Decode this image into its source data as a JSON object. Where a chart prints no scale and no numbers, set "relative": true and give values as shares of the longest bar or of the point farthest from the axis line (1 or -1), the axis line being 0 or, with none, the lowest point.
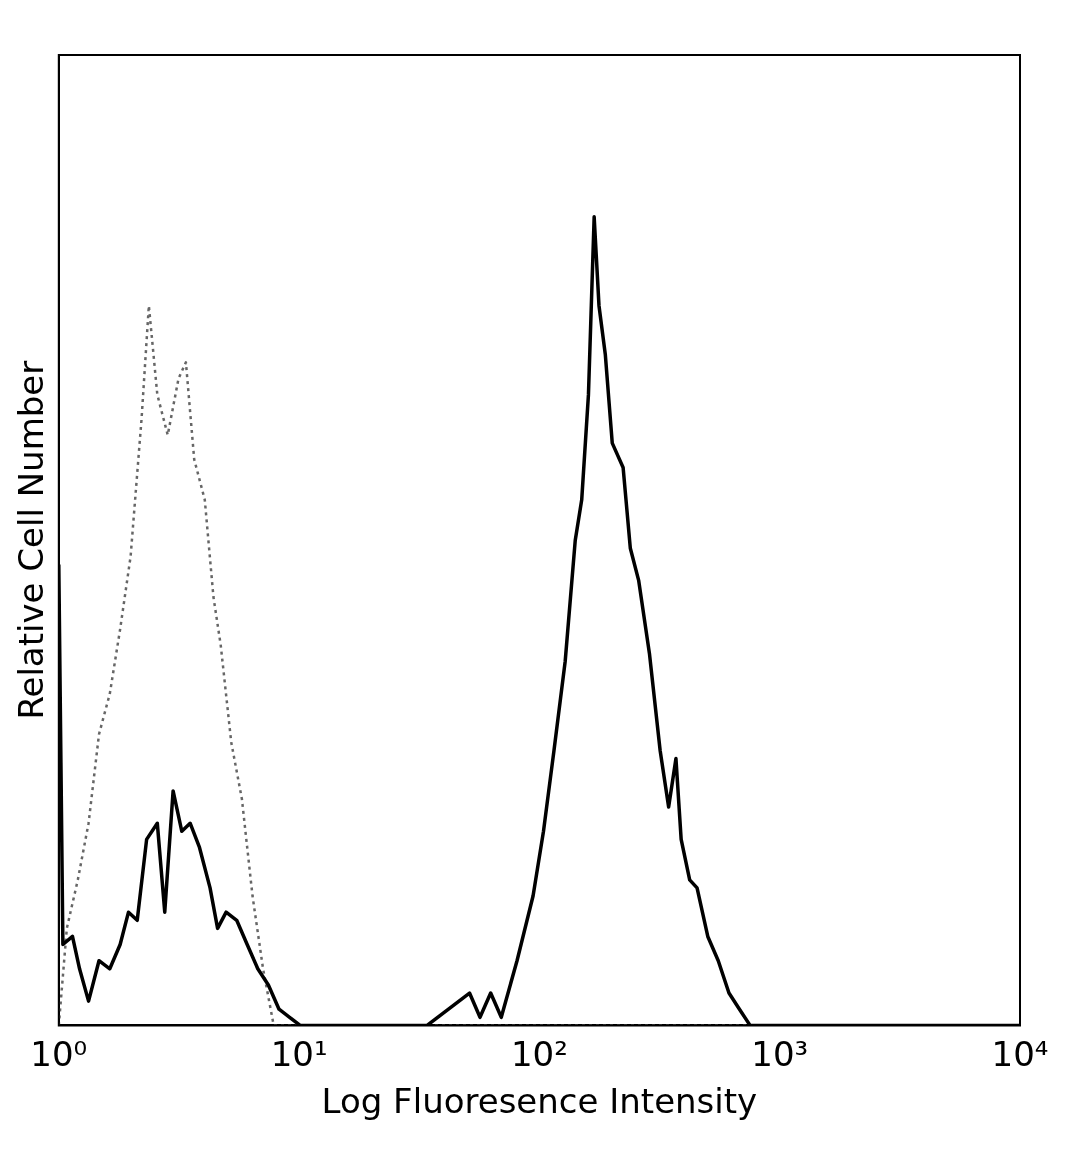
{
  "chart_data": {
    "type": "line",
    "xlabel": "Log Fluoresence Intensity",
    "ylabel": "Relative Cell Number",
    "log": "x",
    "relative": true,
    "xlim": [
      1,
      10000
    ],
    "xticks": [
      {
        "value": 1,
        "label": "10⁰"
      },
      {
        "value": 10,
        "label": "10¹"
      },
      {
        "value": 100,
        "label": "10²"
      },
      {
        "value": 1000,
        "label": "10³"
      },
      {
        "value": 10000,
        "label": "10⁴"
      }
    ],
    "grid": false,
    "marker": "none",
    "series": [
      {
        "color": "#000000",
        "line_style": "solid",
        "x": [
          1,
          1.04,
          1.14,
          1.22,
          1.33,
          1.47,
          1.63,
          1.8,
          1.95,
          2.12,
          2.32,
          2.57,
          2.76,
          2.99,
          3.25,
          3.52,
          3.85,
          4.26,
          4.58,
          4.97,
          5.5,
          6.08,
          6.73,
          7.45,
          8.25,
          9.13,
          10.1,
          18.6,
          34.1,
          51.2,
          56.6,
          62.7,
          69.4,
          80.7,
          94.1,
          104,
          115,
          128,
          141,
          150,
          160,
          169,
          177,
          188,
          201,
          223,
          239,
          259,
          287,
          318,
          345,
          370,
          389,
          422,
          453,
          502,
          555,
          615,
          680,
          753,
          10000
        ],
        "values": [
          0.57,
          0.1,
          0.11,
          0.07,
          0.03,
          0.08,
          0.07,
          0.1,
          0.14,
          0.13,
          0.23,
          0.25,
          0.14,
          0.29,
          0.24,
          0.25,
          0.22,
          0.17,
          0.12,
          0.14,
          0.13,
          0.1,
          0.07,
          0.05,
          0.02,
          0.01,
          0,
          0,
          0,
          0.04,
          0.01,
          0.04,
          0.01,
          0.08,
          0.16,
          0.24,
          0.34,
          0.45,
          0.6,
          0.65,
          0.78,
          1,
          0.89,
          0.83,
          0.72,
          0.69,
          0.59,
          0.55,
          0.46,
          0.34,
          0.27,
          0.33,
          0.23,
          0.18,
          0.17,
          0.11,
          0.08,
          0.04,
          0.02,
          0,
          0
        ]
      },
      {
        "color": "#666666",
        "line_style": "dotted",
        "x": [
          1,
          1.08,
          1.2,
          1.33,
          1.47,
          1.63,
          1.8,
          1.99,
          2.21,
          2.37,
          2.57,
          2.84,
          3.15,
          3.38,
          3.66,
          4.05,
          4.4,
          4.72,
          5.22,
          5.78,
          6.4,
          7.08,
          7.84,
          10000
        ],
        "values": [
          0,
          0.12,
          0.18,
          0.25,
          0.36,
          0.41,
          0.49,
          0.58,
          0.75,
          0.89,
          0.78,
          0.73,
          0.8,
          0.82,
          0.7,
          0.65,
          0.53,
          0.47,
          0.35,
          0.28,
          0.16,
          0.07,
          0,
          0
        ]
      }
    ]
  }
}
